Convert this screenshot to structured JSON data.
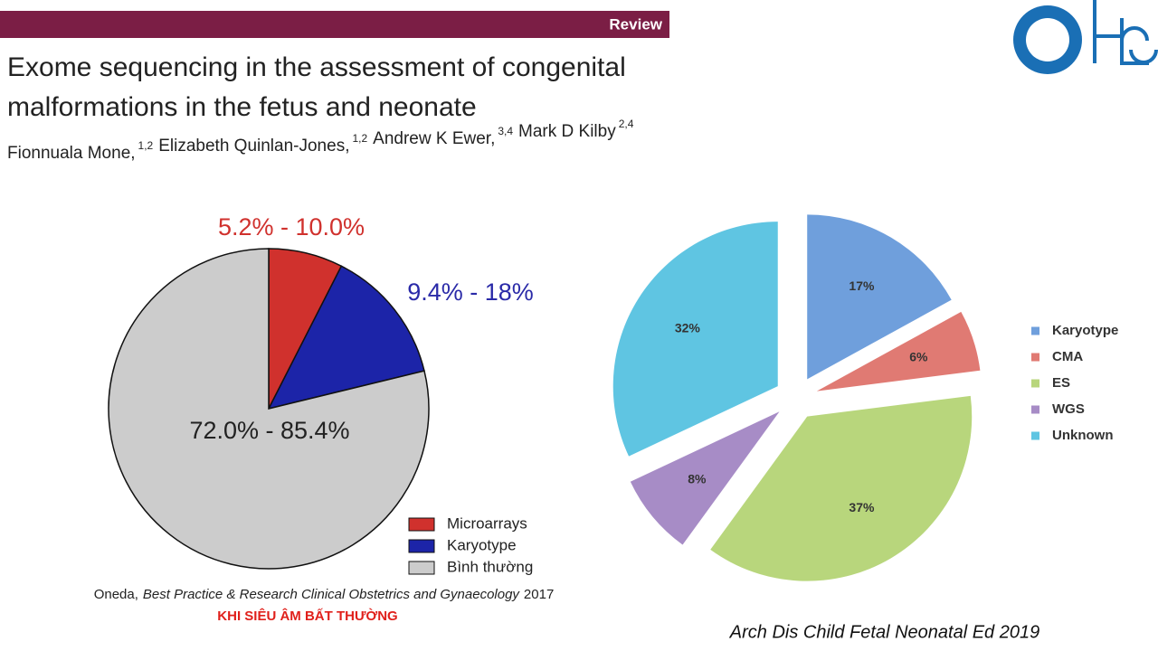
{
  "header": {
    "tag": "Review",
    "title_lines": [
      "Exome sequencing in the assessment of congenital",
      "malformations in the fetus and neonate"
    ],
    "authors": [
      {
        "name": "Fionnuala Mone,",
        "affil": "1,2"
      },
      {
        "name": "Elizabeth Quinlan-Jones,",
        "affil": "1,2"
      },
      {
        "name": "Andrew K Ewer,",
        "affil": "3,4"
      },
      {
        "name": "Mark D Kilby",
        "affil": "2,4"
      }
    ]
  },
  "left_citation": {
    "author": "Oneda,",
    "journal": "Best Practice & Research Clinical Obstetrics and Gynaecology",
    "year": "2017"
  },
  "left_caption": "KHI SIÊU ÂM BẤT THƯỜNG",
  "right_citation": "Arch Dis Child Fetal Neonatal Ed 2019",
  "chart_data": [
    {
      "type": "pie",
      "categories": [
        "Microarrays",
        "Karyotype",
        "Bình thường"
      ],
      "values": [
        7.5,
        13.7,
        78.8
      ],
      "colors": [
        "#d0312d",
        "#1c24a8",
        "#cccccc"
      ],
      "annotations": [
        "5.2% - 10.0%",
        "9.4% - 18%",
        "72.0% - 85.4%"
      ],
      "annotation_colors": [
        "#d0312d",
        "#2a2aa8",
        "#222222"
      ],
      "legend": "bottom-right"
    },
    {
      "type": "pie",
      "categories": [
        "Karyotype",
        "CMA",
        "ES",
        "WGS",
        "Unknown"
      ],
      "values": [
        17,
        6,
        37,
        8,
        32
      ],
      "value_labels": [
        "17%",
        "6%",
        "37%",
        "8%",
        "32%"
      ],
      "colors": [
        "#6f9fdc",
        "#e07a73",
        "#b8d67c",
        "#a78cc6",
        "#5fc5e2"
      ],
      "exploded": true,
      "legend": "right"
    }
  ]
}
